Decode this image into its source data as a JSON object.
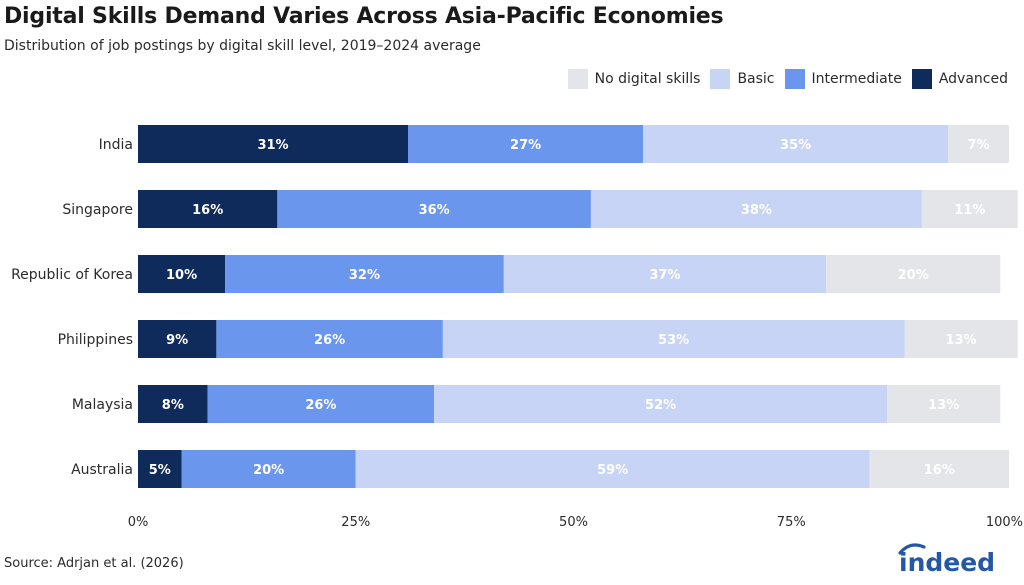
{
  "chart_data": {
    "type": "bar",
    "orientation": "horizontal",
    "stacked": true,
    "title": "Digital Skills Demand Varies Across Asia-Pacific Economies",
    "subtitle": "Distribution of job postings by digital skill level, 2019–2024 average",
    "categories": [
      "India",
      "Singapore",
      "Republic of Korea",
      "Philippines",
      "Malaysia",
      "Australia"
    ],
    "series": [
      {
        "name": "Advanced",
        "color": "#0f2b5b",
        "values": [
          31,
          16,
          10,
          9,
          8,
          5
        ],
        "labels": [
          "31%",
          "16%",
          "10%",
          "9%",
          "8%",
          "5%"
        ]
      },
      {
        "name": "Intermediate",
        "color": "#6b96ee",
        "values": [
          27,
          36,
          32,
          26,
          26,
          20
        ],
        "labels": [
          "27%",
          "36%",
          "32%",
          "26%",
          "26%",
          "20%"
        ]
      },
      {
        "name": "Basic",
        "color": "#c8d4f5",
        "values": [
          35,
          38,
          37,
          53,
          52,
          59
        ],
        "labels": [
          "35%",
          "38%",
          "37%",
          "53%",
          "52%",
          "59%"
        ]
      },
      {
        "name": "No digital skills",
        "color": "#e4e5e9",
        "values": [
          7,
          11,
          20,
          13,
          13,
          16
        ],
        "labels": [
          "7%",
          "11%",
          "20%",
          "13%",
          "13%",
          "16%"
        ]
      }
    ],
    "legend_order": [
      "No digital skills",
      "Basic",
      "Intermediate",
      "Advanced"
    ],
    "legend_position": "top-right",
    "xlim": [
      0,
      100
    ],
    "x_ticks": [
      0,
      25,
      50,
      75,
      100
    ],
    "x_tick_labels": [
      "0%",
      "25%",
      "50%",
      "75%",
      "100%"
    ],
    "xlabel": "",
    "ylabel": "",
    "grid": false
  },
  "source": "Source: Adrjan et al. (2026)",
  "logo": {
    "text": "indeed",
    "icon": "indeed-logo-icon",
    "color": "#2557a7"
  }
}
